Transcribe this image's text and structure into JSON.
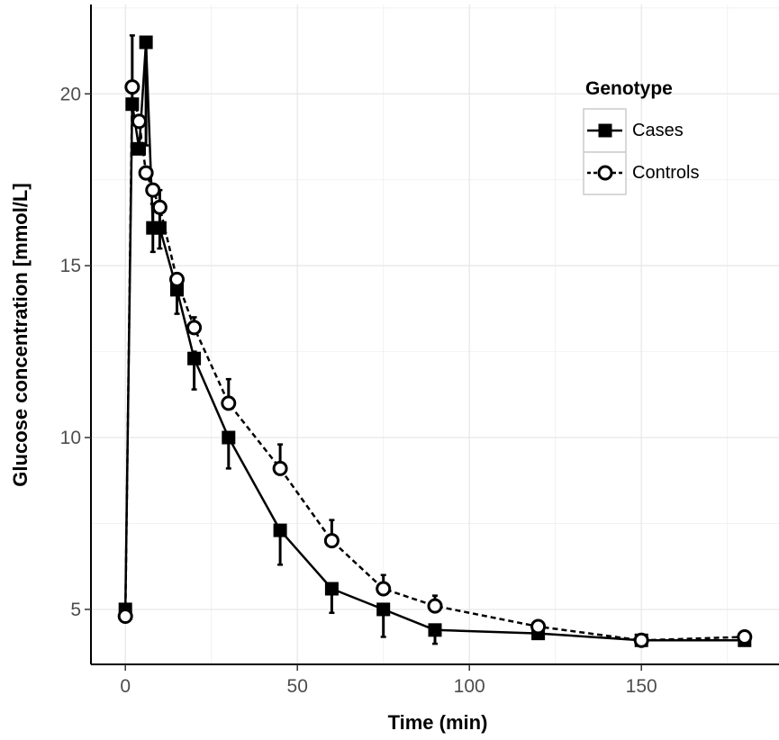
{
  "chart_data": {
    "type": "line",
    "xlabel": "Time (min)",
    "ylabel": "Glucose concentration [mmol/L]",
    "xlim": [
      -10,
      190
    ],
    "ylim": [
      3.4,
      22.6
    ],
    "x_ticks": [
      0,
      50,
      100,
      150
    ],
    "y_ticks": [
      5,
      10,
      15,
      20
    ],
    "x_tick_labels": [
      "0",
      "50",
      "100",
      "150"
    ],
    "y_tick_labels": [
      "5",
      "10",
      "15",
      "20"
    ],
    "grid": true,
    "legend": {
      "title": "Genotype",
      "position": "top-right"
    },
    "series": [
      {
        "name": "Cases",
        "line_style": "solid",
        "marker": "filled-square",
        "color": "#000000",
        "x": [
          0,
          2,
          4,
          6,
          8,
          10,
          15,
          20,
          30,
          45,
          60,
          75,
          90,
          120,
          150,
          180
        ],
        "y": [
          5.0,
          19.7,
          18.4,
          21.5,
          16.1,
          16.1,
          14.3,
          12.3,
          10.0,
          7.3,
          5.6,
          5.0,
          4.4,
          4.3,
          4.1,
          4.1
        ],
        "error_upper": [
          5.0,
          21.7,
          18.7,
          21.5,
          16.8,
          17.2,
          14.5,
          12.5,
          10.1,
          7.4,
          5.6,
          5.0,
          4.4,
          4.3,
          4.1,
          4.1
        ],
        "error_lower": [
          5.0,
          19.7,
          18.4,
          18.5,
          15.4,
          15.5,
          13.6,
          11.4,
          9.1,
          6.3,
          4.9,
          4.2,
          4.0,
          4.3,
          4.1,
          4.1
        ]
      },
      {
        "name": "Controls",
        "line_style": "dashed",
        "marker": "open-circle",
        "color": "#000000",
        "x": [
          0,
          2,
          4,
          6,
          8,
          10,
          15,
          20,
          30,
          45,
          60,
          75,
          90,
          120,
          150,
          180
        ],
        "y": [
          4.8,
          20.2,
          19.2,
          17.7,
          17.2,
          16.7,
          14.6,
          13.2,
          11.0,
          9.1,
          7.0,
          5.6,
          5.1,
          4.5,
          4.1,
          4.2
        ],
        "error_upper": [
          4.8,
          20.2,
          19.2,
          17.7,
          17.3,
          16.7,
          14.7,
          13.5,
          11.7,
          9.8,
          7.6,
          6.0,
          5.4,
          4.5,
          4.1,
          4.2
        ],
        "error_lower": [
          4.8,
          20.2,
          19.2,
          17.7,
          17.2,
          16.7,
          14.6,
          13.2,
          11.0,
          9.1,
          7.0,
          5.6,
          5.1,
          4.5,
          4.1,
          4.2
        ]
      }
    ]
  }
}
